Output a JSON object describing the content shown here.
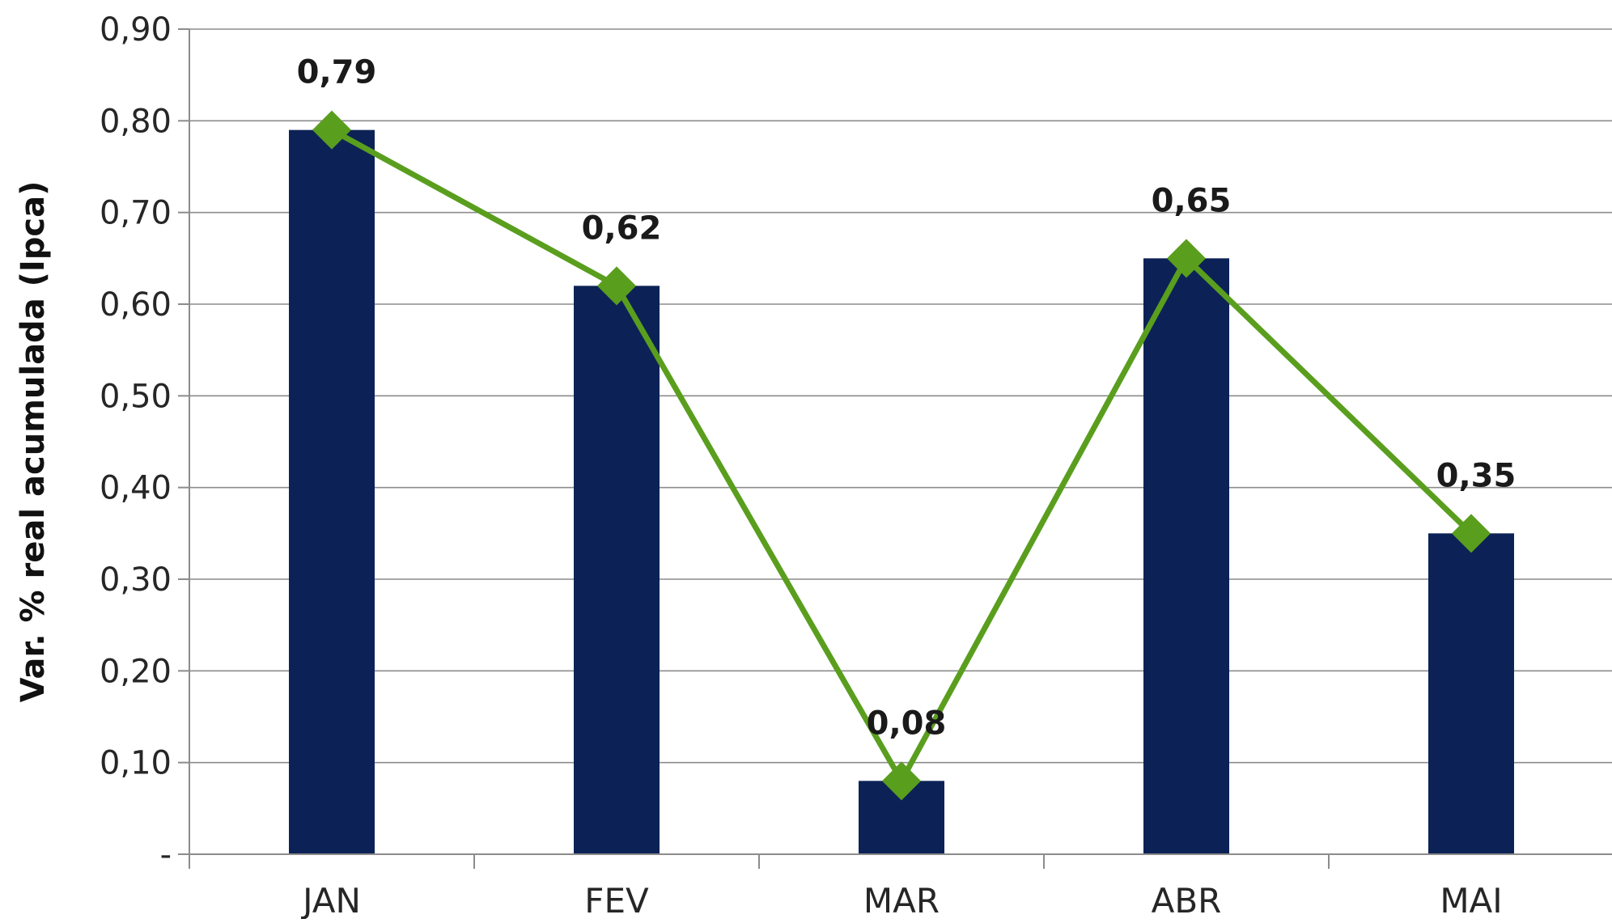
{
  "chart_data": {
    "type": "bar",
    "categories": [
      "JAN",
      "FEV",
      "MAR",
      "ABR",
      "MAI"
    ],
    "series": [
      {
        "type": "bar",
        "values": [
          0.79,
          0.62,
          0.08,
          0.65,
          0.35
        ],
        "color": "#0c2257"
      },
      {
        "type": "line",
        "marker": "diamond",
        "values": [
          0.79,
          0.62,
          0.08,
          0.65,
          0.35
        ],
        "color": "#5a9e1e"
      }
    ],
    "data_labels": [
      "0,79",
      "0,62",
      "0,08",
      "0,65",
      "0,35"
    ],
    "ylabel": "Var. % real acumulada (Ipca)",
    "xlabel": "",
    "title": "",
    "ylim": [
      0,
      0.9
    ],
    "yticks": [
      0,
      0.1,
      0.2,
      0.3,
      0.4,
      0.5,
      0.6,
      0.7,
      0.8,
      0.9
    ],
    "ytick_labels": [
      "-",
      "0,10",
      "0,20",
      "0,30",
      "0,40",
      "0,50",
      "0,60",
      "0,70",
      "0,80",
      "0,90"
    ],
    "grid": true,
    "legend": "none"
  }
}
